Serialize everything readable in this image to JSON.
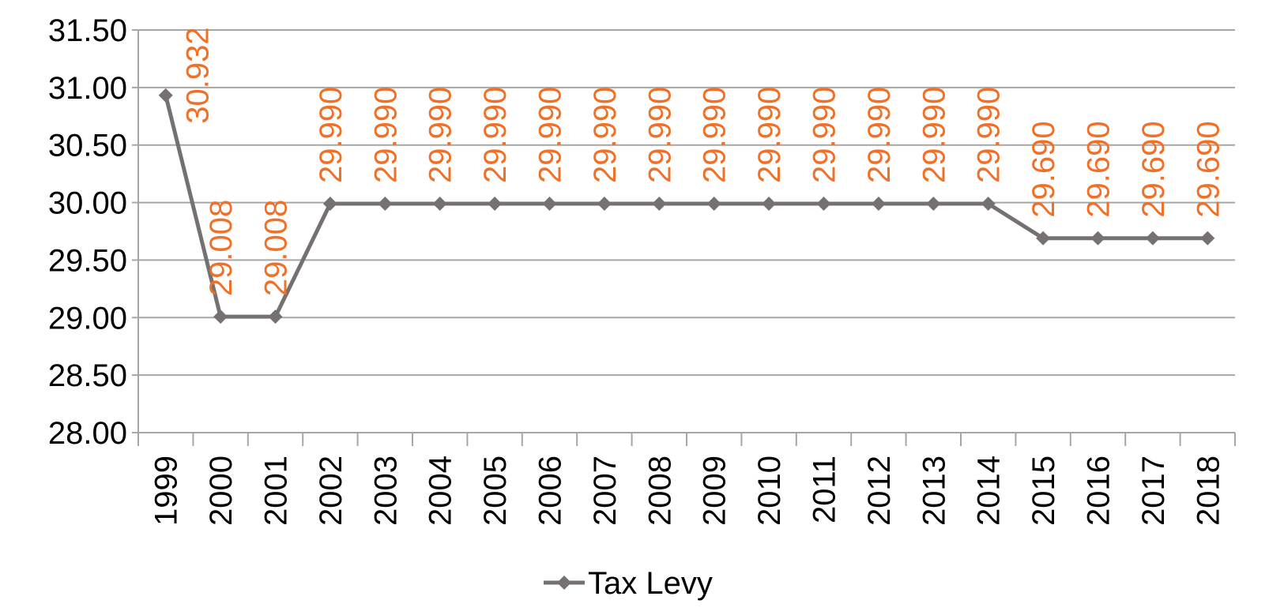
{
  "chart_data": {
    "type": "line",
    "categories": [
      "1999",
      "2000",
      "2001",
      "2002",
      "2003",
      "2004",
      "2005",
      "2006",
      "2007",
      "2008",
      "2009",
      "2010",
      "2011",
      "2012",
      "2013",
      "2014",
      "2015",
      "2016",
      "2017",
      "2018"
    ],
    "series": [
      {
        "name": "Tax Levy",
        "color": "#767171",
        "values": [
          30.932,
          29.008,
          29.008,
          29.99,
          29.99,
          29.99,
          29.99,
          29.99,
          29.99,
          29.99,
          29.99,
          29.99,
          29.99,
          29.99,
          29.99,
          29.99,
          29.69,
          29.69,
          29.69,
          29.69
        ],
        "value_labels": [
          "30.932",
          "29.008",
          "29.008",
          "29.990",
          "29.990",
          "29.990",
          "29.990",
          "29.990",
          "29.990",
          "29.990",
          "29.990",
          "29.990",
          "29.990",
          "29.990",
          "29.990",
          "29.990",
          "29.690",
          "29.690",
          "29.690",
          "29.690"
        ],
        "label_color": "#f07028"
      }
    ],
    "ylim": [
      28,
      31.5
    ],
    "yticks": [
      {
        "value": 28,
        "label": "28.00"
      },
      {
        "value": 28.5,
        "label": "28.50"
      },
      {
        "value": 29,
        "label": "29.00"
      },
      {
        "value": 29.5,
        "label": "29.50"
      },
      {
        "value": 30,
        "label": "30.00"
      },
      {
        "value": 30.5,
        "label": "30.50"
      },
      {
        "value": 31,
        "label": "31.00"
      },
      {
        "value": 31.5,
        "label": "31.50"
      }
    ],
    "grid": true,
    "legend": "bottom"
  }
}
